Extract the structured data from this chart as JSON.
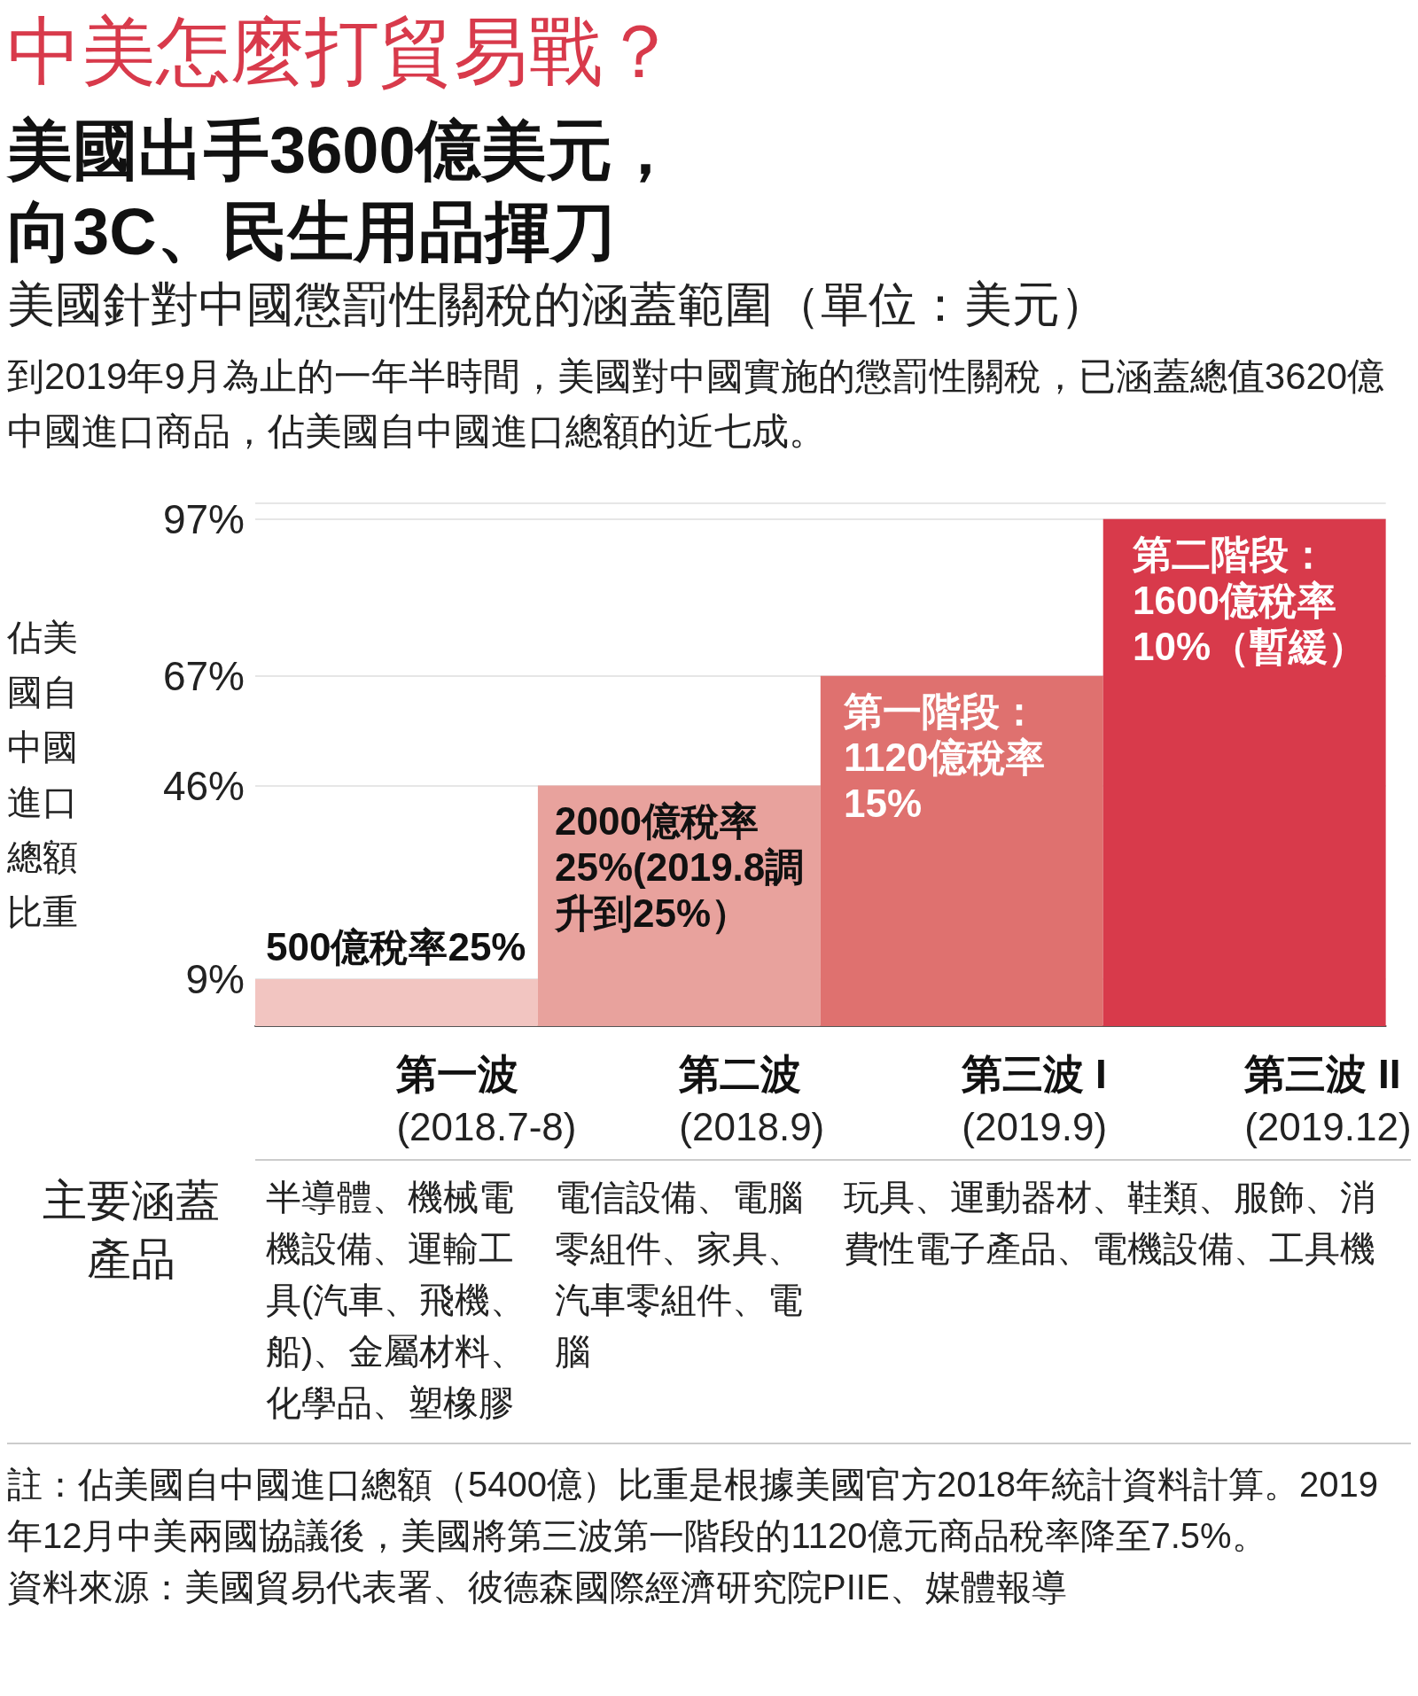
{
  "chart_data": {
    "type": "bar",
    "title": "中美怎麼打貿易戰？",
    "subtitle": "美國出手3600億美元，向3C、民生用品揮刀",
    "ylabel": "佔美國自中國進口總額比重",
    "categories": [
      "第一波\n(2018.7-8)",
      "第二波\n(2018.9)",
      "第三波 I\n(2019.9)",
      "第三波 II\n(2019.12)"
    ],
    "values": [
      9,
      46,
      67,
      97
    ],
    "colors": [
      "#f2c5c1",
      "#e8a29d",
      "#df716f",
      "#d83a4b"
    ],
    "ylim": [
      0,
      100
    ],
    "yticks": [
      {
        "value": 9,
        "label": "9%"
      },
      {
        "value": 46,
        "label": "46%"
      },
      {
        "value": 67,
        "label": "67%"
      },
      {
        "value": 97,
        "label": "97%"
      },
      {
        "value": 100,
        "label": null
      }
    ],
    "grid": "y",
    "annotations": [
      "美國針對中國懲罰性關稅的涵蓋範圍（單位：美元）",
      "到2019年9月為止的一年半時間，美國對中國實施的懲罰性關稅，已涵蓋總值3620億中國進口商品，佔美國自中國進口總額的近七成。",
      "主要涵蓋產品",
      "半導體、機械電機設備、運輸工具(汽車、飛機、船)、金屬材料、化學品、塑橡膠",
      "電信設備、電腦零組件、家具、汽車零組件、電腦",
      "玩具、運動器材、鞋類、服飾、消費性電子產品、電機設備、工具機",
      "註：佔美國自中國進口總額（5400億）比重是根據美國官方2018年統計資料計算。2019年12月中美兩國協議後，美國將第三波第一階段的1120億元商品稅率降至7.5%。",
      "資料來源：美國貿易代表署、彼德森國際經濟研究院PIIE、媒體報導",
      {
        "text": "500億稅率25%",
        "x": "第一波\n(2018.7-8)",
        "y": 9
      },
      {
        "text": "2000億稅率25%(2019.8調升到25%）",
        "x": "第二波\n(2018.9)",
        "y": 46
      },
      {
        "text": "第一階段：1120億稅率15%",
        "x": "第三波 I\n(2019.9)",
        "y": 67
      },
      {
        "text": "第二階段：1600億稅率10%（暫緩）",
        "x": "第三波 II\n(2019.12)",
        "y": 97
      }
    ]
  }
}
